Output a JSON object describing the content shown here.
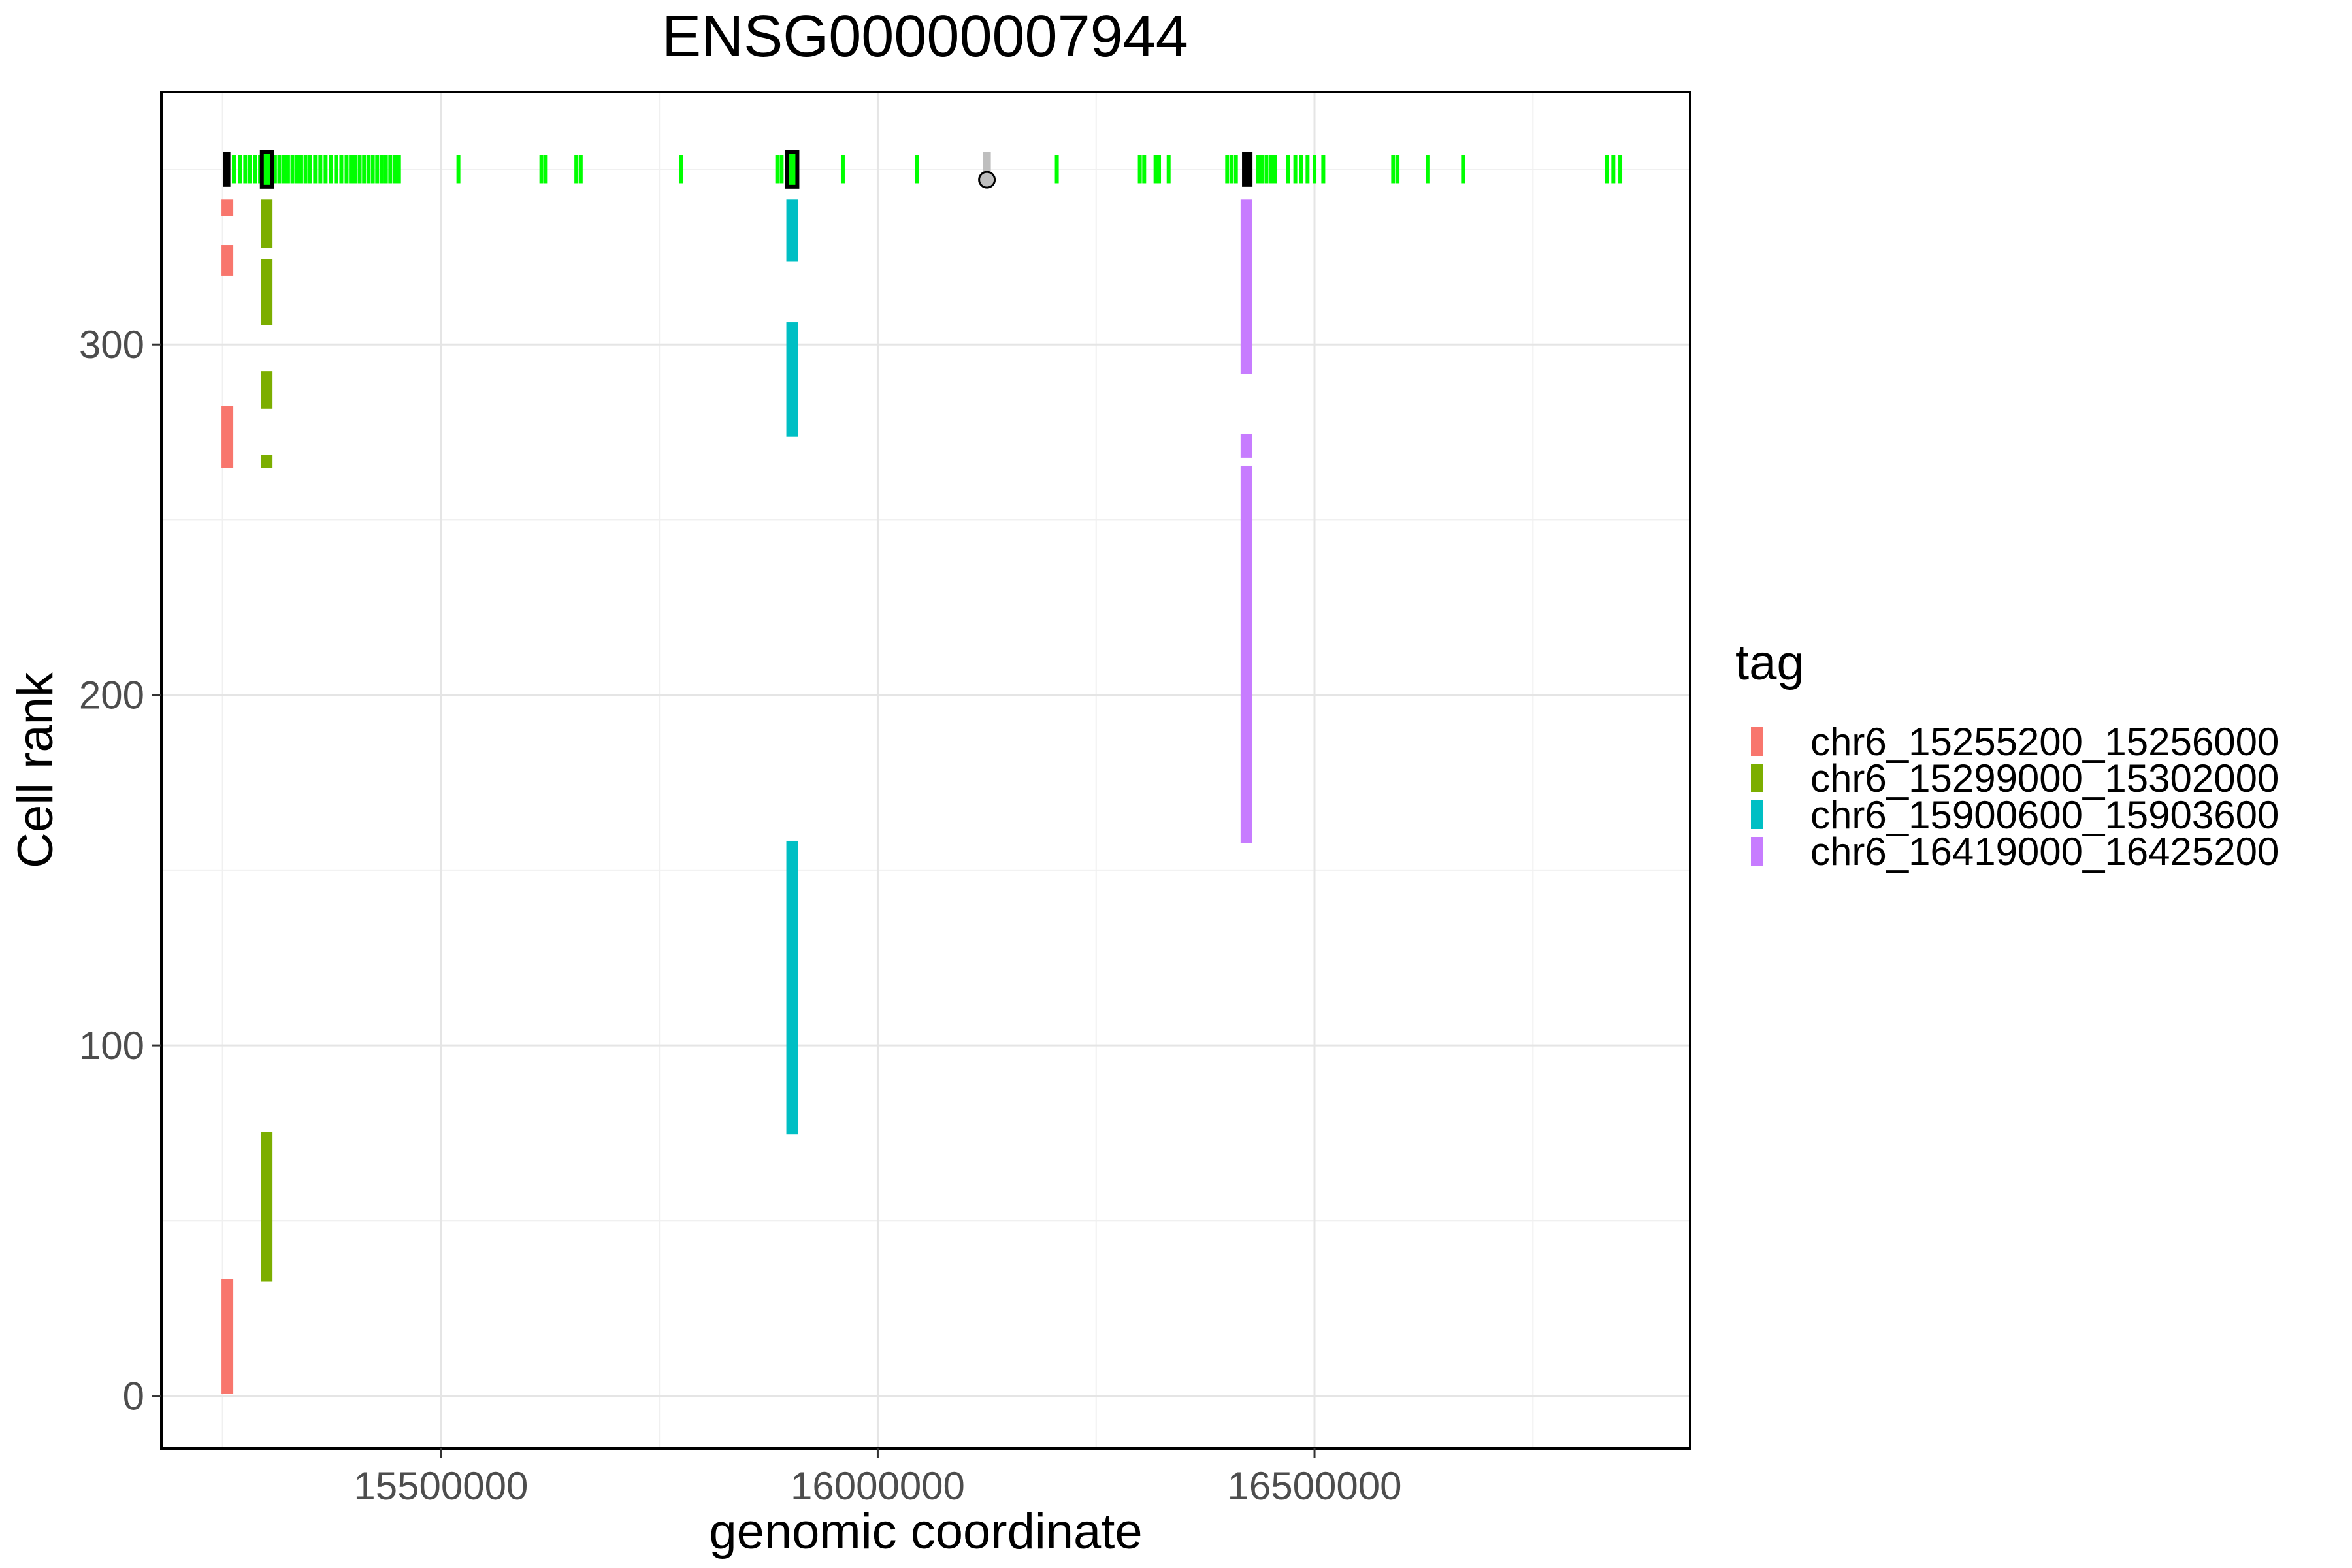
{
  "chart_data": {
    "type": "scatter",
    "title": "ENSG00000007944",
    "xlabel": "genomic coordinate",
    "ylabel": "Cell rank",
    "xlim": [
      15180000,
      16930000
    ],
    "ylim": [
      -15,
      372
    ],
    "x_ticks": [
      15500000,
      16000000,
      16500000
    ],
    "x_tick_labels": [
      "15500000",
      "16000000",
      "16500000"
    ],
    "y_ticks": [
      0,
      100,
      200,
      300
    ],
    "y_tick_labels": [
      "0",
      "100",
      "200",
      "300"
    ],
    "grid": true,
    "legend": {
      "title": "tag",
      "position": "right",
      "entries": [
        {
          "label": "chr6_15255200_15256000",
          "color": "#F8766D"
        },
        {
          "label": "chr6_15299000_15302000",
          "color": "#7CAE00"
        },
        {
          "label": "chr6_15900600_15903600",
          "color": "#00BFC4"
        },
        {
          "label": "chr6_16419000_16425200",
          "color": "#C77CFF"
        }
      ]
    },
    "series": [
      {
        "name": "chr6_15255200_15256000",
        "color": "#F8766D",
        "x": 15255600,
        "rank_ranges": [
          [
            1,
            33
          ],
          [
            265,
            282
          ],
          [
            320,
            328
          ],
          [
            337,
            341
          ]
        ]
      },
      {
        "name": "chr6_15299000_15302000",
        "color": "#7CAE00",
        "x": 15300500,
        "rank_ranges": [
          [
            33,
            75
          ],
          [
            265,
            268
          ],
          [
            282,
            292
          ],
          [
            306,
            324
          ],
          [
            328,
            341
          ]
        ]
      },
      {
        "name": "chr6_15900600_15903600",
        "color": "#00BFC4",
        "x": 15902100,
        "rank_ranges": [
          [
            75,
            158
          ],
          [
            274,
            306
          ],
          [
            324,
            341
          ]
        ]
      },
      {
        "name": "chr6_16419000_16425200",
        "color": "#C77CFF",
        "x": 16422100,
        "rank_ranges": [
          [
            158,
            265
          ],
          [
            268,
            274
          ],
          [
            292,
            341
          ]
        ]
      }
    ],
    "gene_track": {
      "y": 350,
      "color": "#00FF00",
      "features_x": [
        15263000,
        15270000,
        15276000,
        15281000,
        15287000,
        15293000,
        15297000,
        15305000,
        15310000,
        15315000,
        15320000,
        15325000,
        15330000,
        15335000,
        15340000,
        15345000,
        15350000,
        15356000,
        15362000,
        15368000,
        15374000,
        15380000,
        15386000,
        15392000,
        15397000,
        15402000,
        15407000,
        15412000,
        15417000,
        15422000,
        15427000,
        15432000,
        15437000,
        15442000,
        15447000,
        15452000,
        15520000,
        15615000,
        15620000,
        15655000,
        15660000,
        15775000,
        15885000,
        15890000,
        15960000,
        16045000,
        16205000,
        16300000,
        16305000,
        16318000,
        16322000,
        16333000,
        16400000,
        16405000,
        16410000,
        16435000,
        16440000,
        16445000,
        16450000,
        16455000,
        16470000,
        16478000,
        16485000,
        16492000,
        16500000,
        16510000,
        16590000,
        16595000,
        16630000,
        16670000,
        16835000,
        16842000,
        16850000
      ],
      "feature_rank_span": [
        346,
        354
      ],
      "highlight_boxes": [
        {
          "x_range": [
            15251000,
            15259000
          ],
          "outlined": false
        },
        {
          "x_range": [
            15295000,
            15307000
          ],
          "outlined": true
        },
        {
          "x_range": [
            15896000,
            15908000
          ],
          "outlined": true
        },
        {
          "x_range": [
            16417000,
            16429000
          ],
          "outlined": false
        }
      ],
      "tss": {
        "x": 16125000,
        "y": 347,
        "stem_color": "#BEBEBE"
      }
    }
  }
}
